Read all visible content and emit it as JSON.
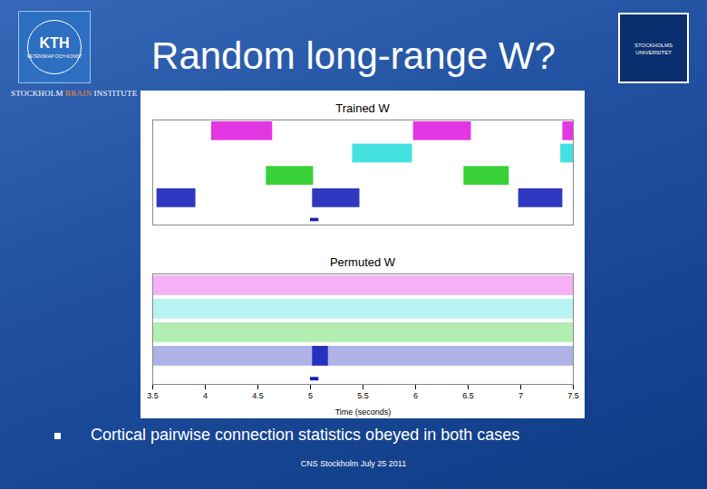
{
  "slide": {
    "title": "Random long-range W?",
    "institute": [
      "STOCKHOLM",
      "BRAIN",
      "INSTITUTE"
    ],
    "bullet": "Cortical pairwise connection statistics obeyed in both cases",
    "footer": "CNS Stockholm July 25 2011",
    "logo_left": [
      "KTH",
      "VETENSKAP OCH KONST"
    ],
    "logo_right": "STOCKHOLMS UNIVERSITET"
  },
  "chart_data": [
    {
      "type": "raster",
      "title": "Trained W",
      "xlim": [
        3.5,
        7.5
      ],
      "tick_labels": false,
      "series": [
        {
          "color": "#e020e0",
          "values": [
            [
              4.06,
              4.64
            ],
            [
              5.98,
              6.53
            ],
            [
              7.4,
              7.5
            ]
          ],
          "sparse": []
        },
        {
          "color": "#30dede",
          "values": [
            [
              5.4,
              5.97
            ],
            [
              7.38,
              7.5
            ]
          ],
          "sparse": []
        },
        {
          "color": "#22cc22",
          "values": [
            [
              4.58,
              5.03
            ],
            [
              6.46,
              6.89
            ]
          ],
          "sparse": []
        },
        {
          "color": "#1a22b8",
          "values": [
            [
              3.54,
              3.91
            ],
            [
              5.02,
              5.47
            ],
            [
              6.98,
              7.4
            ]
          ],
          "sparse": []
        }
      ],
      "stimulus": [
        [
          5.0,
          5.08
        ]
      ]
    },
    {
      "type": "raster",
      "title": "Permuted W",
      "xlim": [
        3.5,
        7.5
      ],
      "tick_labels": "x",
      "xticks": [
        3.5,
        4,
        4.5,
        5,
        5.5,
        6,
        6.5,
        7,
        7.5
      ],
      "xlabel": "Time (seconds)",
      "series": [
        {
          "color": "#e020e0",
          "values": [],
          "sparse": [
            [
              3.5,
              7.5
            ]
          ]
        },
        {
          "color": "#30dede",
          "values": [],
          "sparse": [
            [
              3.5,
              7.5
            ]
          ]
        },
        {
          "color": "#22cc22",
          "values": [],
          "sparse": [
            [
              3.5,
              7.5
            ]
          ]
        },
        {
          "color": "#1a22b8",
          "values": [
            [
              5.02,
              5.17
            ]
          ],
          "sparse": [
            [
              3.5,
              7.5
            ]
          ]
        }
      ],
      "stimulus": [
        [
          5.0,
          5.08
        ]
      ]
    }
  ]
}
